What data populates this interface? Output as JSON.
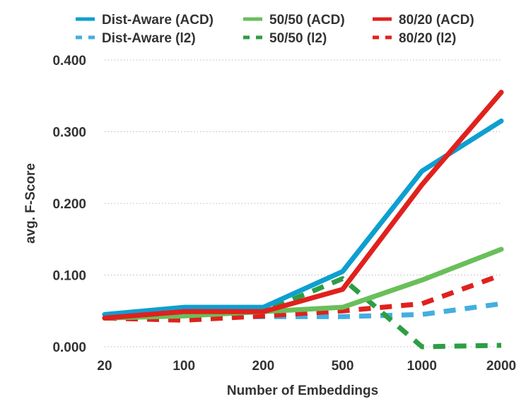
{
  "chart_data": {
    "type": "line",
    "xlabel": "Number of Embeddings",
    "ylabel": "avg. F-Score",
    "categories": [
      "20",
      "100",
      "200",
      "500",
      "1000",
      "2000"
    ],
    "ylim": [
      0,
      0.4
    ],
    "yticks": [
      "0.000",
      "0.100",
      "0.200",
      "0.300",
      "0.400"
    ],
    "grid": "horizontal dotted",
    "legend_position": "top",
    "series": [
      {
        "name": "Dist-Aware (ACD)",
        "color": "#0e9fd0",
        "style": "solid",
        "values": [
          0.045,
          0.055,
          0.055,
          0.105,
          0.245,
          0.315
        ]
      },
      {
        "name": "50/50 (ACD)",
        "color": "#69bf5a",
        "style": "solid",
        "values": [
          0.04,
          0.043,
          0.049,
          0.055,
          0.093,
          0.136
        ]
      },
      {
        "name": "80/20 (ACD)",
        "color": "#e0211d",
        "style": "solid",
        "values": [
          0.04,
          0.049,
          0.049,
          0.08,
          0.226,
          0.355
        ]
      },
      {
        "name": "Dist-Aware (l2)",
        "color": "#43aee0",
        "style": "dashed",
        "values": [
          0.04,
          0.041,
          0.042,
          0.042,
          0.045,
          0.06
        ]
      },
      {
        "name": "50/50 (l2)",
        "color": "#2c9e44",
        "style": "dashed",
        "values": [
          0.04,
          0.043,
          0.049,
          0.095,
          0.0,
          0.002
        ]
      },
      {
        "name": "80/20 (l2)",
        "color": "#e0211d",
        "style": "dashed",
        "values": [
          0.04,
          0.037,
          0.043,
          0.05,
          0.06,
          0.1
        ]
      }
    ]
  }
}
